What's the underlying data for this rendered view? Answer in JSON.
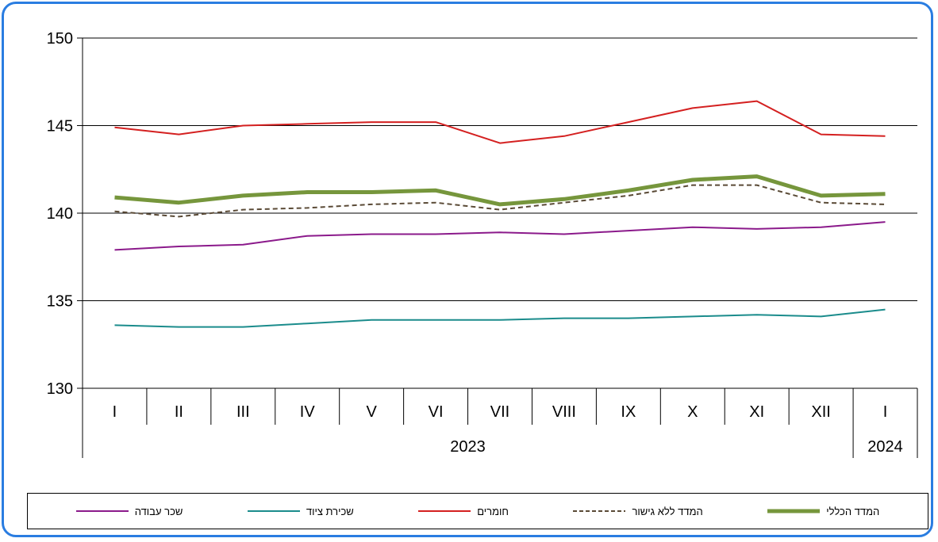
{
  "chart_data": {
    "type": "line",
    "categories": [
      "I",
      "II",
      "III",
      "IV",
      "V",
      "VI",
      "VII",
      "VIII",
      "IX",
      "X",
      "XI",
      "XII",
      "I"
    ],
    "year_groups": [
      {
        "label": "2023",
        "from": 0,
        "to": 11
      },
      {
        "label": "2024",
        "from": 12,
        "to": 12
      }
    ],
    "ylim": [
      130,
      150
    ],
    "yticks": [
      "130",
      "135",
      "140",
      "145",
      "150"
    ],
    "grid": true,
    "legend_position": "bottom",
    "series": [
      {
        "name": "המדד הכללי",
        "color": "#76963c",
        "style": "solid-thick",
        "values": [
          140.9,
          140.6,
          141.0,
          141.2,
          141.2,
          141.3,
          140.5,
          140.8,
          141.3,
          141.9,
          142.1,
          141.0,
          141.1
        ]
      },
      {
        "name": "המדד ללא גישור",
        "color": "#5a4a36",
        "style": "dashed",
        "values": [
          140.1,
          139.8,
          140.2,
          140.3,
          140.5,
          140.6,
          140.2,
          140.6,
          141.0,
          141.6,
          141.6,
          140.6,
          140.5
        ]
      },
      {
        "name": "חומרים",
        "color": "#d42020",
        "style": "solid",
        "values": [
          144.9,
          144.5,
          145.0,
          145.1,
          145.2,
          145.2,
          144.0,
          144.4,
          145.2,
          146.0,
          146.4,
          144.5,
          144.4
        ]
      },
      {
        "name": "שכירת ציוד",
        "color": "#1b8c8c",
        "style": "solid",
        "values": [
          133.6,
          133.5,
          133.5,
          133.7,
          133.9,
          133.9,
          133.9,
          134.0,
          134.0,
          134.1,
          134.2,
          134.1,
          134.5
        ]
      },
      {
        "name": "שכר עבודה",
        "color": "#8b1a8b",
        "style": "solid",
        "values": [
          137.9,
          138.1,
          138.2,
          138.7,
          138.8,
          138.8,
          138.9,
          138.8,
          139.0,
          139.2,
          139.1,
          139.2,
          139.5
        ]
      }
    ]
  }
}
